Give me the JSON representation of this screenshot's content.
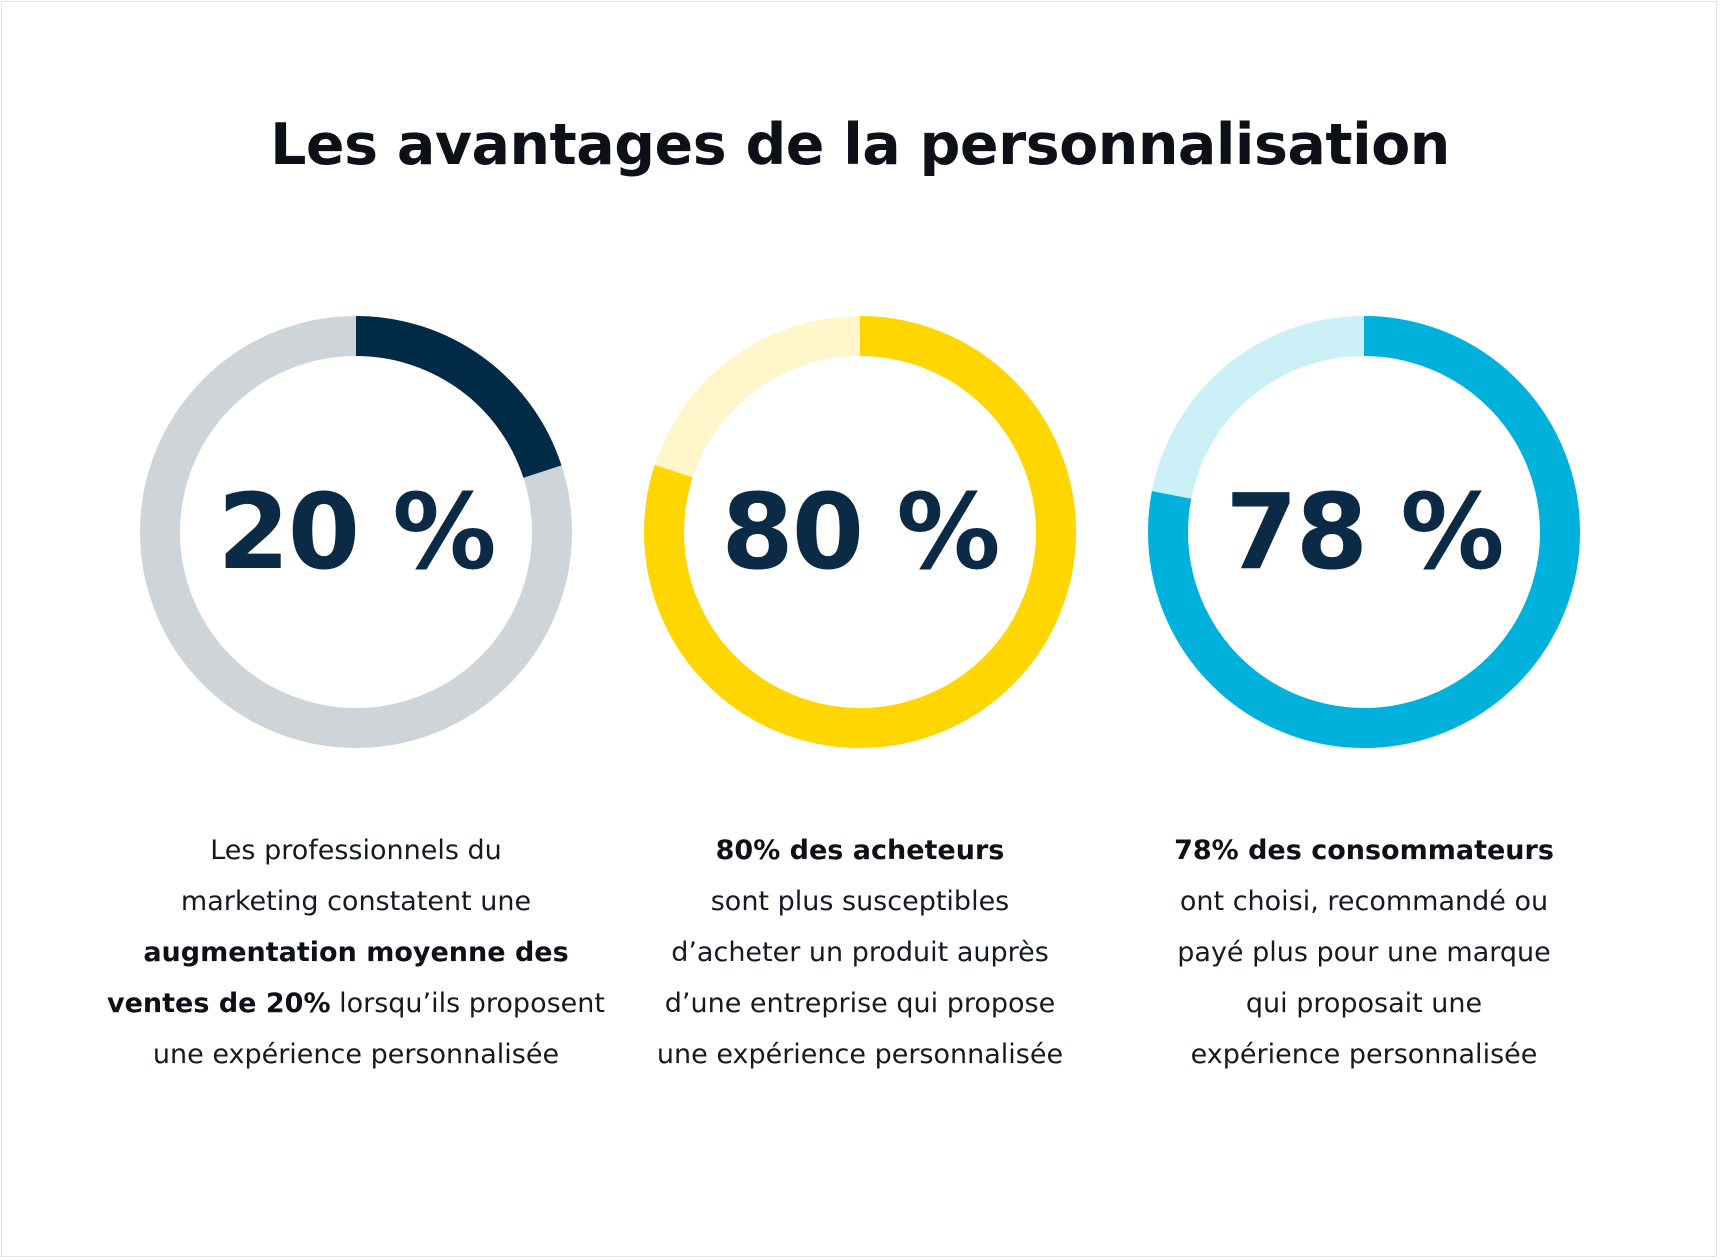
{
  "title": "Les avantages de la personnalisation",
  "chart_data": [
    {
      "type": "pie",
      "subtype": "donut",
      "value": 20,
      "unit": "%",
      "label": "20 %",
      "colors": {
        "filled": "#012a46",
        "track": "#cfd4d9"
      },
      "description": {
        "l1": "Les professionnels du",
        "l2": "marketing constatent une",
        "l3_bold": "augmentation moyenne des",
        "l4_bold": "ventes de 20%",
        "l4_rest": " lorsqu’ils proposent",
        "l5": "une expérience personnalisée"
      }
    },
    {
      "type": "pie",
      "subtype": "donut",
      "value": 80,
      "unit": "%",
      "label": "80 %",
      "colors": {
        "filled": "#ffd600",
        "track": "#fff6cc"
      },
      "description": {
        "l1_bold": "80% des acheteurs",
        "l2": "sont plus susceptibles",
        "l3": "d’acheter un produit auprès",
        "l4": "d’une entreprise qui propose",
        "l5": "une expérience personnalisée"
      }
    },
    {
      "type": "pie",
      "subtype": "donut",
      "value": 78,
      "unit": "%",
      "label": "78 %",
      "colors": {
        "filled": "#00b1dc",
        "track": "#ccf0f8"
      },
      "description": {
        "l1_bold": "78% des consommateurs",
        "l2": "ont choisi, recommandé ou",
        "l3": "payé plus pour une marque",
        "l4": "qui proposait une",
        "l5": "expérience personnalisée"
      }
    }
  ]
}
